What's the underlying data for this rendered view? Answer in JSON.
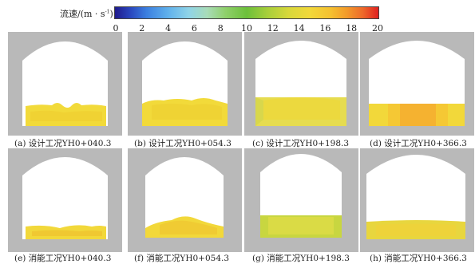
{
  "legend": {
    "label": "流速/(m · s",
    "label_sup": "-1",
    "label_close": ")",
    "ticks": [
      "0",
      "2",
      "4",
      "6",
      "8",
      "10",
      "12",
      "14",
      "16",
      "18",
      "20"
    ]
  },
  "panels": [
    {
      "caption": "(a) 设计工况YH0+040.3"
    },
    {
      "caption": "(b) 设计工况YH0+054.3"
    },
    {
      "caption": "(c) 设计工况YH0+198.3"
    },
    {
      "caption": "(d) 设计工况YH0+366.3"
    },
    {
      "caption": "(e) 消能工况YH0+040.3"
    },
    {
      "caption": "(f) 消能工况YH0+054.3"
    },
    {
      "caption": "(g) 消能工况YH0+198.3"
    },
    {
      "caption": "(h) 消能工况YH0+366.3"
    }
  ]
}
